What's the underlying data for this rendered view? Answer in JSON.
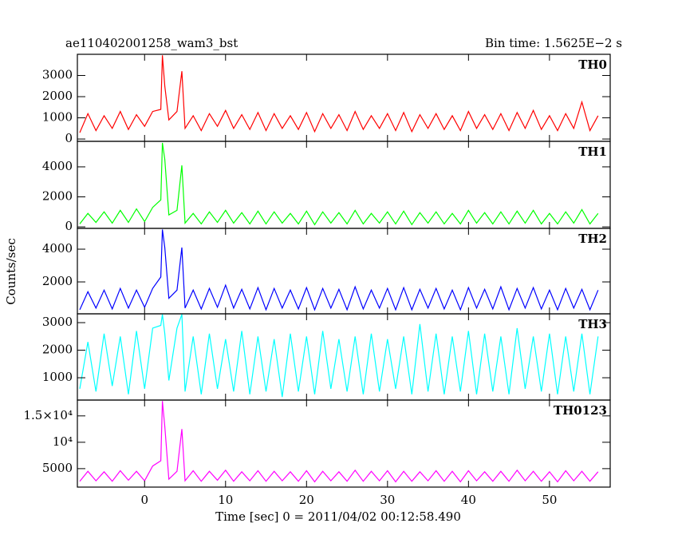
{
  "chart_data": [
    {
      "type": "line",
      "title": "ae110402001258_wam3_bst",
      "subtitle": "Bin time: 1.5625E−2 s",
      "x": [
        -8,
        -7,
        -6,
        -5,
        -4,
        -3,
        -2,
        -1,
        0,
        1,
        2,
        2.2,
        2.5,
        3,
        4,
        4.6,
        5,
        6,
        7,
        8,
        9,
        10,
        11,
        12,
        13,
        14,
        15,
        16,
        17,
        18,
        19,
        20,
        21,
        22,
        23,
        24,
        25,
        26,
        27,
        28,
        29,
        30,
        31,
        32,
        33,
        34,
        35,
        36,
        37,
        38,
        39,
        40,
        41,
        42,
        43,
        44,
        45,
        46,
        47,
        48,
        49,
        50,
        51,
        52,
        53,
        54,
        55,
        56
      ],
      "series": [
        {
          "name": "TH0",
          "color": "#ff0000",
          "values": [
            300,
            1200,
            400,
            1100,
            500,
            1300,
            450,
            1150,
            600,
            1300,
            1400,
            3950,
            2500,
            900,
            1300,
            3200,
            500,
            1100,
            400,
            1200,
            600,
            1350,
            500,
            1150,
            450,
            1250,
            400,
            1200,
            500,
            1100,
            450,
            1250,
            350,
            1200,
            500,
            1150,
            400,
            1300,
            450,
            1100,
            500,
            1200,
            400,
            1250,
            350,
            1150,
            500,
            1200,
            450,
            1100,
            400,
            1300,
            500,
            1150,
            450,
            1200,
            400,
            1250,
            500,
            1350,
            450,
            1100,
            400,
            1200,
            500,
            1750,
            400,
            1100
          ]
        }
      ],
      "xlim": [
        -8.3,
        57.5
      ],
      "ylim": [
        -110,
        4000
      ],
      "yticks": [
        0,
        1000,
        2000,
        3000
      ]
    },
    {
      "type": "line",
      "x": [
        -8,
        -7,
        -6,
        -5,
        -4,
        -3,
        -2,
        -1,
        0,
        1,
        2,
        2.2,
        2.5,
        3,
        4,
        4.6,
        5,
        6,
        7,
        8,
        9,
        10,
        11,
        12,
        13,
        14,
        15,
        16,
        17,
        18,
        19,
        20,
        21,
        22,
        23,
        24,
        25,
        26,
        27,
        28,
        29,
        30,
        31,
        32,
        33,
        34,
        35,
        36,
        37,
        38,
        39,
        40,
        41,
        42,
        43,
        44,
        45,
        46,
        47,
        48,
        49,
        50,
        51,
        52,
        53,
        54,
        55,
        56
      ],
      "series": [
        {
          "name": "TH1",
          "color": "#00ff00",
          "values": [
            200,
            900,
            300,
            1000,
            250,
            1100,
            300,
            1200,
            350,
            1300,
            1800,
            5600,
            4500,
            800,
            1100,
            4100,
            250,
            900,
            200,
            1000,
            300,
            1100,
            250,
            950,
            200,
            1050,
            200,
            1000,
            250,
            900,
            200,
            1050,
            150,
            1000,
            250,
            950,
            200,
            1100,
            200,
            900,
            250,
            1000,
            200,
            1050,
            150,
            950,
            250,
            1000,
            200,
            900,
            200,
            1100,
            250,
            950,
            200,
            1000,
            200,
            1050,
            250,
            1100,
            200,
            900,
            200,
            1000,
            250,
            1150,
            200,
            900
          ]
        }
      ],
      "xlim": [
        -8.3,
        57.5
      ],
      "ylim": [
        -100,
        5700
      ],
      "yticks": [
        0,
        2000,
        4000
      ]
    },
    {
      "type": "line",
      "ylabel": "Counts/sec",
      "x": [
        -8,
        -7,
        -6,
        -5,
        -4,
        -3,
        -2,
        -1,
        0,
        1,
        2,
        2.2,
        2.5,
        3,
        4,
        4.6,
        5,
        6,
        7,
        8,
        9,
        10,
        11,
        12,
        13,
        14,
        15,
        16,
        17,
        18,
        19,
        20,
        21,
        22,
        23,
        24,
        25,
        26,
        27,
        28,
        29,
        30,
        31,
        32,
        33,
        34,
        35,
        36,
        37,
        38,
        39,
        40,
        41,
        42,
        43,
        44,
        45,
        46,
        47,
        48,
        49,
        50,
        51,
        52,
        53,
        54,
        55,
        56
      ],
      "series": [
        {
          "name": "TH2",
          "color": "#0000ff",
          "values": [
            300,
            1400,
            400,
            1500,
            350,
            1600,
            400,
            1500,
            450,
            1600,
            2300,
            5200,
            4100,
            1000,
            1500,
            4100,
            400,
            1500,
            350,
            1600,
            450,
            1800,
            400,
            1550,
            350,
            1650,
            300,
            1600,
            400,
            1500,
            350,
            1650,
            300,
            1600,
            400,
            1550,
            300,
            1700,
            350,
            1500,
            400,
            1600,
            300,
            1650,
            300,
            1550,
            400,
            1600,
            350,
            1500,
            300,
            1650,
            400,
            1550,
            350,
            1700,
            300,
            1600,
            400,
            1650,
            350,
            1500,
            300,
            1600,
            400,
            1550,
            300,
            1500
          ]
        }
      ],
      "xlim": [
        -8.3,
        57.5
      ],
      "ylim": [
        50,
        5270
      ],
      "yticks": [
        2000,
        4000
      ]
    },
    {
      "type": "line",
      "x": [
        -8,
        -7,
        -6,
        -5,
        -4,
        -3,
        -2,
        -1,
        0,
        1,
        2,
        2.2,
        2.5,
        3,
        4,
        4.6,
        5,
        6,
        7,
        8,
        9,
        10,
        11,
        12,
        13,
        14,
        15,
        16,
        17,
        18,
        19,
        20,
        21,
        22,
        23,
        24,
        25,
        26,
        27,
        28,
        29,
        30,
        31,
        32,
        33,
        34,
        35,
        36,
        37,
        38,
        39,
        40,
        41,
        42,
        43,
        44,
        45,
        46,
        47,
        48,
        49,
        50,
        51,
        52,
        53,
        54,
        55,
        56
      ],
      "series": [
        {
          "name": "TH3",
          "color": "#00ffff",
          "values": [
            600,
            2300,
            500,
            2600,
            700,
            2500,
            400,
            2700,
            600,
            2800,
            2900,
            3300,
            2600,
            900,
            2800,
            3300,
            500,
            2500,
            400,
            2600,
            600,
            2400,
            500,
            2700,
            400,
            2500,
            500,
            2400,
            300,
            2600,
            500,
            2500,
            400,
            2700,
            600,
            2400,
            500,
            2500,
            400,
            2600,
            500,
            2400,
            600,
            2500,
            400,
            2950,
            500,
            2600,
            400,
            2500,
            500,
            2700,
            400,
            2600,
            500,
            2500,
            400,
            2800,
            600,
            2500,
            500,
            2600,
            400,
            2500,
            500,
            2600,
            400,
            2500
          ]
        }
      ],
      "xlim": [
        -8.3,
        57.5
      ],
      "ylim": [
        190,
        3320
      ],
      "yticks": [
        1000,
        2000,
        3000
      ]
    },
    {
      "type": "line",
      "xlabel": "Time [sec] 0 = 2011/04/02 00:12:58.490",
      "x": [
        -8,
        -7,
        -6,
        -5,
        -4,
        -3,
        -2,
        -1,
        0,
        1,
        2,
        2.2,
        2.5,
        3,
        4,
        4.6,
        5,
        6,
        7,
        8,
        9,
        10,
        11,
        12,
        13,
        14,
        15,
        16,
        17,
        18,
        19,
        20,
        21,
        22,
        23,
        24,
        25,
        26,
        27,
        28,
        29,
        30,
        31,
        32,
        33,
        34,
        35,
        36,
        37,
        38,
        39,
        40,
        41,
        42,
        43,
        44,
        45,
        46,
        47,
        48,
        49,
        50,
        51,
        52,
        53,
        54,
        55,
        56
      ],
      "series": [
        {
          "name": "TH0123",
          "color": "#ff00ff",
          "values": [
            2600,
            4500,
            2700,
            4400,
            2600,
            4600,
            2800,
            4500,
            2700,
            5500,
            6500,
            17800,
            13000,
            3000,
            4500,
            12500,
            2700,
            4600,
            2600,
            4500,
            2800,
            4700,
            2600,
            4400,
            2700,
            4600,
            2600,
            4500,
            2700,
            4400,
            2600,
            4600,
            2500,
            4500,
            2700,
            4400,
            2600,
            4700,
            2600,
            4500,
            2700,
            4600,
            2500,
            4500,
            2600,
            4400,
            2700,
            4600,
            2600,
            4500,
            2500,
            4600,
            2700,
            4400,
            2600,
            4500,
            2600,
            4700,
            2700,
            4500,
            2600,
            4400,
            2500,
            4600,
            2700,
            4500,
            2600,
            4400
          ]
        }
      ],
      "xlim": [
        -8.3,
        57.5
      ],
      "ylim": [
        1500,
        18000
      ],
      "yticks": [
        5000,
        {
          "value": 10000,
          "label": "10⁴"
        },
        {
          "value": 15000,
          "label": "1.5×10⁴"
        }
      ],
      "xticks": [
        0,
        10,
        20,
        30,
        40,
        50
      ]
    }
  ]
}
